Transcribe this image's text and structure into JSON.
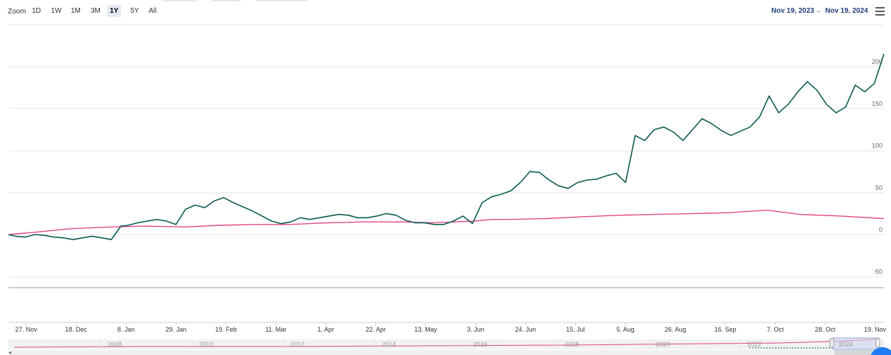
{
  "toolbar": {
    "zoom_label": "Zoom",
    "buttons": [
      "1D",
      "1W",
      "1M",
      "3M",
      "1Y",
      "5Y",
      "All"
    ],
    "active": "1Y",
    "range_from": "Nov 19, 2023",
    "range_sep": "→",
    "range_to": "Nov 19, 2024"
  },
  "chart_data": {
    "type": "line",
    "x_tick_labels": [
      "27. Nov",
      "18. Dec",
      "8. Jan",
      "29. Jan",
      "19. Feb",
      "11. Mar",
      "1. Apr",
      "22. Apr",
      "13. May",
      "3. Jun",
      "24. Jun",
      "15. Jul",
      "5. Aug",
      "26. Aug",
      "16. Sep",
      "7. Oct",
      "28. Oct",
      "19. Nov"
    ],
    "y_ticks": [
      -50,
      0,
      50,
      100,
      150,
      200
    ],
    "ylim": [
      -55,
      225
    ],
    "series": [
      {
        "color": "#0b5a52",
        "x": [
          "2023-11-19",
          "2023-11-22",
          "2023-11-26",
          "2023-11-30",
          "2023-12-04",
          "2023-12-08",
          "2023-12-12",
          "2023-12-16",
          "2023-12-20",
          "2023-12-24",
          "2023-12-28",
          "2024-01-01",
          "2024-01-05",
          "2024-01-08",
          "2024-01-12",
          "2024-01-16",
          "2024-01-20",
          "2024-01-24",
          "2024-01-28",
          "2024-02-01",
          "2024-02-05",
          "2024-02-09",
          "2024-02-13",
          "2024-02-17",
          "2024-02-21",
          "2024-02-25",
          "2024-02-29",
          "2024-03-04",
          "2024-03-08",
          "2024-03-12",
          "2024-03-16",
          "2024-03-20",
          "2024-03-24",
          "2024-03-28",
          "2024-04-01",
          "2024-04-05",
          "2024-04-09",
          "2024-04-13",
          "2024-04-17",
          "2024-04-21",
          "2024-04-25",
          "2024-04-29",
          "2024-05-03",
          "2024-05-07",
          "2024-05-11",
          "2024-05-15",
          "2024-05-19",
          "2024-05-23",
          "2024-05-27",
          "2024-05-31",
          "2024-06-04",
          "2024-06-08",
          "2024-06-12",
          "2024-06-16",
          "2024-06-20",
          "2024-06-24",
          "2024-06-28",
          "2024-07-02",
          "2024-07-06",
          "2024-07-10",
          "2024-07-14",
          "2024-07-18",
          "2024-07-22",
          "2024-07-26",
          "2024-07-30",
          "2024-08-03",
          "2024-08-07",
          "2024-08-11",
          "2024-08-15",
          "2024-08-19",
          "2024-08-23",
          "2024-08-27",
          "2024-08-31",
          "2024-09-04",
          "2024-09-08",
          "2024-09-12",
          "2024-09-16",
          "2024-09-20",
          "2024-09-24",
          "2024-09-28",
          "2024-10-02",
          "2024-10-06",
          "2024-10-10",
          "2024-10-14",
          "2024-10-18",
          "2024-10-22",
          "2024-10-26",
          "2024-10-30",
          "2024-11-03",
          "2024-11-07",
          "2024-11-11",
          "2024-11-15",
          "2024-11-19"
        ],
        "values": [
          0,
          -2,
          -3,
          0,
          -1,
          -3,
          -4,
          -6,
          -4,
          -2,
          -4,
          -6,
          10,
          11,
          14,
          16,
          18,
          16,
          12,
          30,
          35,
          32,
          40,
          44,
          38,
          33,
          28,
          22,
          16,
          13,
          15,
          20,
          18,
          20,
          22,
          24,
          23,
          20,
          20,
          22,
          25,
          23,
          17,
          14,
          14,
          12,
          12,
          16,
          22,
          13,
          38,
          45,
          48,
          52,
          62,
          75,
          74,
          65,
          58,
          55,
          62,
          65,
          66,
          70,
          73,
          62,
          118,
          112,
          125,
          128,
          122,
          112,
          125,
          138,
          132,
          124,
          118,
          123,
          128,
          140,
          165,
          145,
          155,
          170,
          182,
          172,
          155,
          145,
          152,
          178,
          170,
          180,
          215
        ]
      },
      {
        "color": "#e0458a",
        "x": [
          "2023-11-19",
          "2023-12-01",
          "2023-12-15",
          "2024-01-01",
          "2024-01-15",
          "2024-02-01",
          "2024-02-15",
          "2024-03-01",
          "2024-03-15",
          "2024-04-01",
          "2024-04-15",
          "2024-05-01",
          "2024-05-15",
          "2024-06-01",
          "2024-06-08",
          "2024-06-15",
          "2024-07-01",
          "2024-07-15",
          "2024-08-01",
          "2024-08-15",
          "2024-09-01",
          "2024-09-15",
          "2024-10-01",
          "2024-10-15",
          "2024-11-01",
          "2024-11-19"
        ],
        "values": [
          0,
          3,
          7,
          9,
          10,
          9,
          11,
          12,
          12,
          14,
          15,
          15,
          14,
          16,
          18,
          18,
          19,
          21,
          23,
          24,
          25,
          26,
          29,
          24,
          22,
          19
        ]
      }
    ],
    "navigator": {
      "x_tick_labels": [
        "2008",
        "2010",
        "2012",
        "2014",
        "2016",
        "2018",
        "2020",
        "2022",
        "2024"
      ]
    }
  }
}
